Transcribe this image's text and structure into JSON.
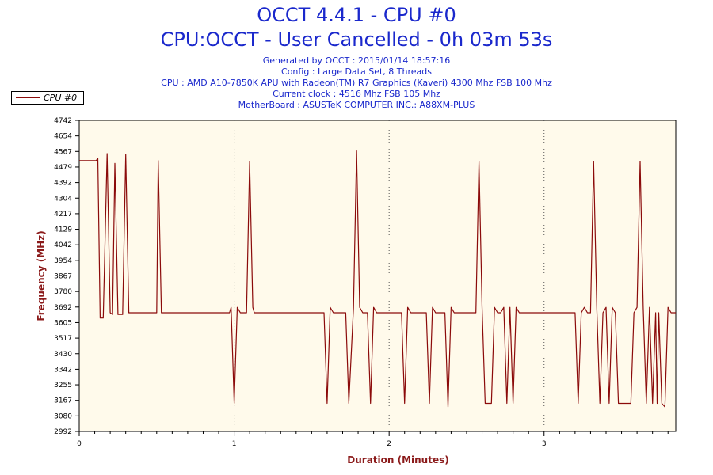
{
  "header": {
    "title": "OCCT 4.4.1 - CPU #0",
    "subtitle": "CPU:OCCT - User Cancelled - 0h 03m 53s",
    "info_lines": [
      "Generated by OCCT : 2015/01/14 18:57:16",
      "Config : Large Data Set, 8 Threads",
      "CPU : AMD A10-7850K APU with Radeon(TM) R7 Graphics (Kaveri) 4300 Mhz FSB 100 Mhz",
      "Current clock : 4516 Mhz FSB 105 Mhz",
      "MotherBoard : ASUSTeK COMPUTER INC.: A88XM-PLUS"
    ]
  },
  "chart_data": {
    "type": "line",
    "title": "OCCT 4.4.1 - CPU #0",
    "xlabel": "Duration (Minutes)",
    "ylabel": "Frequency (MHz)",
    "xlim": [
      0,
      3.85
    ],
    "ylim": [
      2992,
      4742
    ],
    "x_ticks": [
      "0",
      "1",
      "2",
      "3"
    ],
    "x_tick_values": [
      0,
      1,
      2,
      3
    ],
    "y_ticks": [
      "4742",
      "4654",
      "4567",
      "4479",
      "4392",
      "4304",
      "4217",
      "4129",
      "4042",
      "3954",
      "3867",
      "3780",
      "3692",
      "3605",
      "3517",
      "3430",
      "3342",
      "3255",
      "3167",
      "3080",
      "2992"
    ],
    "grid": "vertical dotted at major x ticks",
    "legend_position": "top-left",
    "series": [
      {
        "name": "CPU #0",
        "color": "#8b0a0a",
        "points": [
          [
            0,
            4516
          ],
          [
            0.11,
            4516
          ],
          [
            0.12,
            4530
          ],
          [
            0.135,
            3630
          ],
          [
            0.155,
            3630
          ],
          [
            0.18,
            4555
          ],
          [
            0.2,
            3660
          ],
          [
            0.215,
            3650
          ],
          [
            0.23,
            4500
          ],
          [
            0.25,
            3650
          ],
          [
            0.28,
            3650
          ],
          [
            0.3,
            4550
          ],
          [
            0.32,
            3660
          ],
          [
            0.34,
            3660
          ],
          [
            0.5,
            3660
          ],
          [
            0.51,
            4516
          ],
          [
            0.53,
            3660
          ],
          [
            0.54,
            3660
          ],
          [
            0.97,
            3660
          ],
          [
            0.98,
            3690
          ],
          [
            1.0,
            3150
          ],
          [
            1.02,
            3690
          ],
          [
            1.04,
            3660
          ],
          [
            1.08,
            3660
          ],
          [
            1.1,
            4510
          ],
          [
            1.12,
            3690
          ],
          [
            1.13,
            3660
          ],
          [
            1.58,
            3660
          ],
          [
            1.6,
            3150
          ],
          [
            1.62,
            3690
          ],
          [
            1.64,
            3660
          ],
          [
            1.72,
            3660
          ],
          [
            1.74,
            3150
          ],
          [
            1.77,
            3690
          ],
          [
            1.79,
            4570
          ],
          [
            1.81,
            3690
          ],
          [
            1.83,
            3660
          ],
          [
            1.86,
            3660
          ],
          [
            1.88,
            3150
          ],
          [
            1.9,
            3690
          ],
          [
            1.92,
            3660
          ],
          [
            2.08,
            3660
          ],
          [
            2.1,
            3150
          ],
          [
            2.12,
            3690
          ],
          [
            2.14,
            3660
          ],
          [
            2.24,
            3660
          ],
          [
            2.26,
            3150
          ],
          [
            2.28,
            3690
          ],
          [
            2.3,
            3660
          ],
          [
            2.36,
            3660
          ],
          [
            2.38,
            3130
          ],
          [
            2.4,
            3690
          ],
          [
            2.42,
            3660
          ],
          [
            2.56,
            3660
          ],
          [
            2.58,
            4510
          ],
          [
            2.6,
            3690
          ],
          [
            2.62,
            3150
          ],
          [
            2.64,
            3150
          ],
          [
            2.66,
            3150
          ],
          [
            2.68,
            3690
          ],
          [
            2.7,
            3660
          ],
          [
            2.72,
            3660
          ],
          [
            2.74,
            3690
          ],
          [
            2.76,
            3150
          ],
          [
            2.78,
            3690
          ],
          [
            2.8,
            3150
          ],
          [
            2.82,
            3690
          ],
          [
            2.84,
            3660
          ],
          [
            3.18,
            3660
          ],
          [
            3.2,
            3660
          ],
          [
            3.22,
            3150
          ],
          [
            3.24,
            3660
          ],
          [
            3.26,
            3690
          ],
          [
            3.28,
            3660
          ],
          [
            3.3,
            3660
          ],
          [
            3.32,
            4510
          ],
          [
            3.34,
            3690
          ],
          [
            3.36,
            3150
          ],
          [
            3.38,
            3660
          ],
          [
            3.4,
            3690
          ],
          [
            3.42,
            3150
          ],
          [
            3.44,
            3690
          ],
          [
            3.46,
            3660
          ],
          [
            3.48,
            3150
          ],
          [
            3.52,
            3150
          ],
          [
            3.56,
            3150
          ],
          [
            3.58,
            3660
          ],
          [
            3.6,
            3690
          ],
          [
            3.62,
            4510
          ],
          [
            3.64,
            3690
          ],
          [
            3.66,
            3150
          ],
          [
            3.68,
            3690
          ],
          [
            3.7,
            3150
          ],
          [
            3.72,
            3660
          ],
          [
            3.73,
            3150
          ],
          [
            3.74,
            3660
          ],
          [
            3.76,
            3150
          ],
          [
            3.78,
            3130
          ],
          [
            3.8,
            3690
          ],
          [
            3.82,
            3660
          ],
          [
            3.85,
            3660
          ]
        ]
      }
    ]
  }
}
